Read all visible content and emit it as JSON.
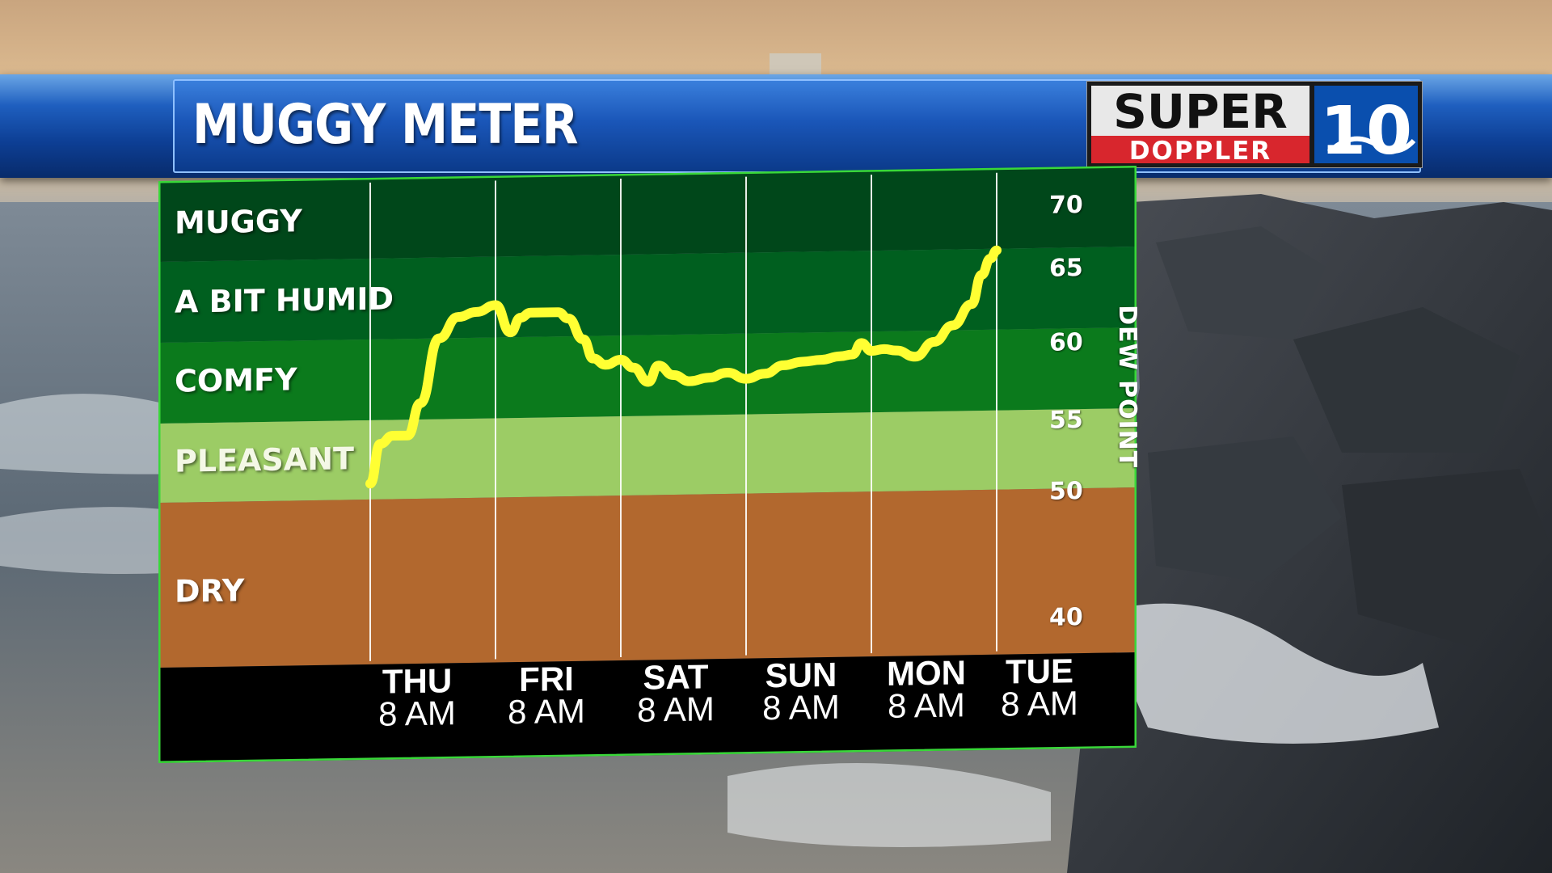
{
  "header": {
    "title": "MUGGY METER",
    "logo_text_top": "SUPER",
    "logo_text_bottom": "DOPPLER",
    "logo_number": "10"
  },
  "colors": {
    "muggy": "#00471a",
    "a_bit_humid": "#005f1f",
    "comfy": "#0b7a1c",
    "pleasant": "#9ccc65",
    "dry": "#b2682e",
    "line": "#ffff33",
    "frame": "#39d839",
    "axis_band": "#000000"
  },
  "chart_data": {
    "type": "line",
    "title": "MUGGY METER",
    "ylabel": "DEW POINT",
    "ylim": [
      35,
      72
    ],
    "yticks": [
      70,
      65,
      60,
      55,
      50,
      40
    ],
    "zones": [
      {
        "label": "MUGGY",
        "from": 65,
        "to": 72
      },
      {
        "label": "A BIT HUMID",
        "from": 60,
        "to": 65
      },
      {
        "label": "COMFY",
        "from": 55,
        "to": 60
      },
      {
        "label": "PLEASANT",
        "from": 50,
        "to": 55
      },
      {
        "label": "DRY",
        "from": 35,
        "to": 50
      }
    ],
    "categories": [
      {
        "day": "THU",
        "time": "8 AM"
      },
      {
        "day": "FRI",
        "time": "8 AM"
      },
      {
        "day": "SAT",
        "time": "8 AM"
      },
      {
        "day": "SUN",
        "time": "8 AM"
      },
      {
        "day": "MON",
        "time": "8 AM"
      },
      {
        "day": "TUE",
        "time": "8 AM"
      }
    ],
    "series": [
      {
        "x": [
          0.0,
          0.08,
          0.18,
          0.3,
          0.4,
          0.55,
          0.7,
          0.85,
          1.0,
          1.12,
          1.2,
          1.28,
          1.38,
          1.5,
          1.58,
          1.7,
          1.78,
          1.88,
          2.0,
          2.1,
          2.22,
          2.3,
          2.42,
          2.55,
          2.7,
          2.85,
          3.0,
          3.15,
          3.3,
          3.45,
          3.6,
          3.75,
          3.85,
          3.92,
          4.0,
          4.1,
          4.2,
          4.35,
          4.5,
          4.65,
          4.8,
          4.88,
          4.95,
          5.0
        ],
        "values": [
          51,
          53.5,
          54,
          54,
          56,
          60,
          61.3,
          61.6,
          62,
          60.3,
          61.2,
          61.5,
          61.5,
          61.5,
          61.1,
          59.8,
          58.6,
          58.2,
          58.5,
          58.0,
          57.1,
          58.1,
          57.5,
          57.1,
          57.3,
          57.6,
          57.2,
          57.5,
          58.0,
          58.2,
          58.3,
          58.5,
          58.6,
          59.3,
          58.8,
          58.9,
          58.8,
          58.4,
          59.3,
          60.3,
          61.6,
          63.4,
          64.4,
          64.9
        ]
      }
    ]
  }
}
